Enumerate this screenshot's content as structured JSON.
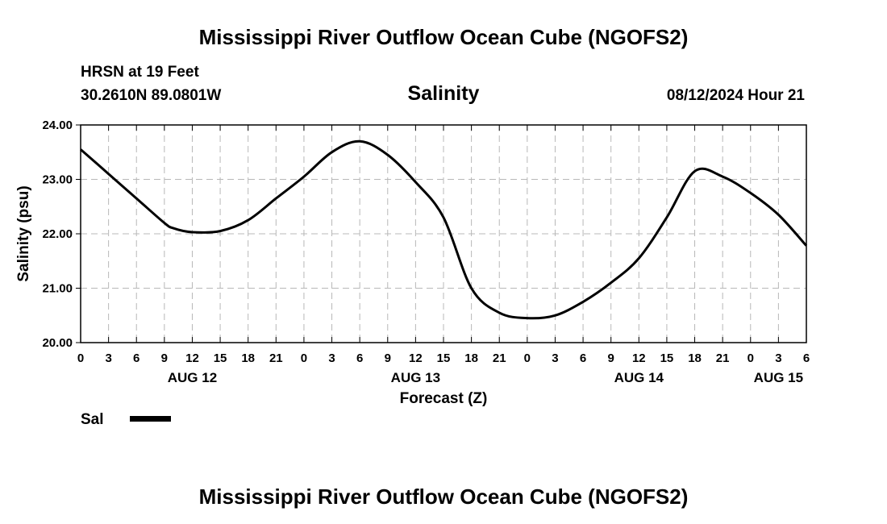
{
  "chart_data": {
    "type": "line",
    "title": "Mississippi River Outflow Ocean Cube (NGOFS2)",
    "subtitle": "Salinity",
    "station": "HRSN at 19 Feet",
    "coordinates": "30.2610N  89.0801W",
    "timestamp": "08/12/2024 Hour 21",
    "xlabel": "Forecast (Z)",
    "ylabel": "Salinity (psu)",
    "ylim": [
      20,
      24
    ],
    "yticks": [
      "20.00",
      "21.00",
      "22.00",
      "23.00",
      "24.00"
    ],
    "xlim_hours": [
      0,
      78
    ],
    "xtick_labels": [
      "0",
      "3",
      "6",
      "9",
      "12",
      "15",
      "18",
      "21",
      "0",
      "3",
      "6",
      "9",
      "12",
      "15",
      "18",
      "21",
      "0",
      "3",
      "6",
      "9",
      "12",
      "15",
      "18",
      "21",
      "0",
      "3",
      "6"
    ],
    "day_labels": [
      {
        "label": "AUG 12",
        "hour": 12
      },
      {
        "label": "AUG 13",
        "hour": 36
      },
      {
        "label": "AUG 14",
        "hour": 60
      },
      {
        "label": "AUG 15",
        "hour": 75
      }
    ],
    "grid": true,
    "series": [
      {
        "name": "Sal",
        "x": [
          0,
          3,
          6,
          9,
          10,
          12,
          15,
          18,
          21,
          24,
          27,
          30,
          33,
          36,
          39,
          42,
          45,
          48,
          51,
          54,
          57,
          60,
          63,
          66,
          69,
          72,
          75,
          78
        ],
        "values": [
          23.55,
          23.1,
          22.65,
          22.2,
          22.1,
          22.03,
          22.05,
          22.25,
          22.65,
          23.05,
          23.5,
          23.7,
          23.45,
          22.95,
          22.3,
          21.0,
          20.55,
          20.45,
          20.5,
          20.75,
          21.1,
          21.55,
          22.3,
          23.15,
          23.05,
          22.75,
          22.35,
          21.78
        ]
      }
    ],
    "legend": [
      {
        "label": "Sal",
        "placement": "bottom-left"
      }
    ],
    "footer_title": "Mississippi River Outflow Ocean Cube (NGOFS2)"
  }
}
